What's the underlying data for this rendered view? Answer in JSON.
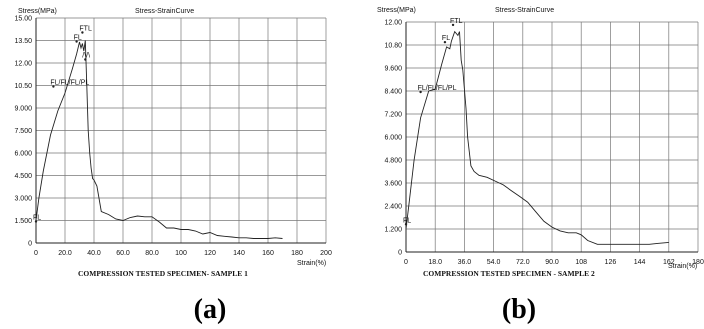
{
  "charts": [
    {
      "letter": "(a)",
      "ylabel": "Stress(MPa)",
      "title": "Stress-StrainCurve",
      "xlabel": "Strain(%)",
      "caption": "COMPRESSION TESTED SPECIMEN- SAMPLE 1",
      "yticks": [
        "0",
        "1.500",
        "3.000",
        "4.500",
        "6.000",
        "7.500",
        "9.000",
        "10.50",
        "12.00",
        "13.50",
        "15.00"
      ],
      "xticks": [
        "0",
        "20.0",
        "40.0",
        "60.0",
        "80.0",
        "100",
        "120",
        "140",
        "160",
        "180",
        "200"
      ],
      "annotations": [
        {
          "text": "FL",
          "x": 0,
          "y": 1.5
        },
        {
          "text": "FL/FL/FL/PL",
          "x": 12,
          "y": 10.5
        },
        {
          "text": "FL",
          "x": 28,
          "y": 13.5
        },
        {
          "text": "FTL",
          "x": 32,
          "y": 14.1
        },
        {
          "text": "/\\/\\",
          "x": 34,
          "y": 12.3
        }
      ]
    },
    {
      "letter": "(b)",
      "ylabel": "Stress(MPa)",
      "title": "Stress-StrainCurve",
      "xlabel": "Strain(%)",
      "caption": "COMPRESSION TESTED SPECIMEN - SAMPLE 2",
      "yticks": [
        "0",
        "1.200",
        "2.400",
        "3.600",
        "4.800",
        "6.000",
        "7.200",
        "8.400",
        "9.600",
        "10.80",
        "12.00"
      ],
      "xticks": [
        "0",
        "18.0",
        "36.0",
        "54.0",
        "72.0",
        "90.0",
        "108",
        "126",
        "144",
        "162",
        "180"
      ],
      "annotations": [
        {
          "text": "FL",
          "x": 0,
          "y": 1.5
        },
        {
          "text": "FL/FL/FL/PL",
          "x": 9,
          "y": 8.4
        },
        {
          "text": "FL",
          "x": 24,
          "y": 11.0
        },
        {
          "text": "FTL",
          "x": 29,
          "y": 11.9
        }
      ]
    }
  ],
  "chart_data": [
    {
      "type": "line",
      "title": "Stress-StrainCurve",
      "xlabel": "Strain(%)",
      "ylabel": "Stress(MPa)",
      "xlim": [
        0,
        200
      ],
      "ylim": [
        0,
        15
      ],
      "grid": true,
      "series": [
        {
          "x": [
            0,
            2,
            5,
            10,
            15,
            20,
            25,
            28,
            30,
            31,
            32,
            33,
            34,
            35,
            36,
            37,
            38,
            39,
            40,
            42,
            45,
            50,
            55,
            60,
            65,
            70,
            75,
            80,
            85,
            90,
            95,
            100,
            105,
            110,
            115,
            120,
            125,
            130,
            135,
            140,
            145,
            150,
            155,
            160,
            165,
            170
          ],
          "y": [
            1.5,
            3.0,
            4.8,
            7.2,
            8.8,
            10.0,
            11.6,
            12.6,
            13.4,
            13.0,
            13.3,
            12.8,
            13.5,
            10.5,
            7.5,
            6.0,
            5.0,
            4.3,
            4.2,
            3.8,
            2.1,
            1.9,
            1.6,
            1.5,
            1.7,
            1.8,
            1.75,
            1.75,
            1.4,
            1.0,
            1.0,
            0.9,
            0.9,
            0.8,
            0.6,
            0.7,
            0.5,
            0.45,
            0.4,
            0.35,
            0.35,
            0.3,
            0.3,
            0.3,
            0.35,
            0.3
          ]
        }
      ]
    },
    {
      "type": "line",
      "title": "Stress-StrainCurve",
      "xlabel": "Strain(%)",
      "ylabel": "Stress(MPa)",
      "xlim": [
        0,
        180
      ],
      "ylim": [
        0,
        12
      ],
      "grid": true,
      "series": [
        {
          "x": [
            0,
            2,
            5,
            9,
            14,
            18,
            22,
            25,
            27,
            28,
            30,
            32,
            33,
            34,
            35,
            36,
            37,
            38,
            40,
            42,
            45,
            50,
            55,
            60,
            65,
            70,
            75,
            80,
            85,
            90,
            95,
            100,
            105,
            108,
            112,
            118,
            126,
            135,
            144,
            150,
            155,
            162
          ],
          "y": [
            1.2,
            2.6,
            4.8,
            7.0,
            8.4,
            8.5,
            9.8,
            10.7,
            10.6,
            11.0,
            11.5,
            11.3,
            11.5,
            10.0,
            9.5,
            8.5,
            7.5,
            6.0,
            4.5,
            4.2,
            4.0,
            3.9,
            3.7,
            3.5,
            3.2,
            2.9,
            2.6,
            2.1,
            1.6,
            1.3,
            1.1,
            1.0,
            1.0,
            0.9,
            0.6,
            0.4,
            0.4,
            0.4,
            0.4,
            0.4,
            0.45,
            0.5
          ]
        }
      ]
    }
  ]
}
